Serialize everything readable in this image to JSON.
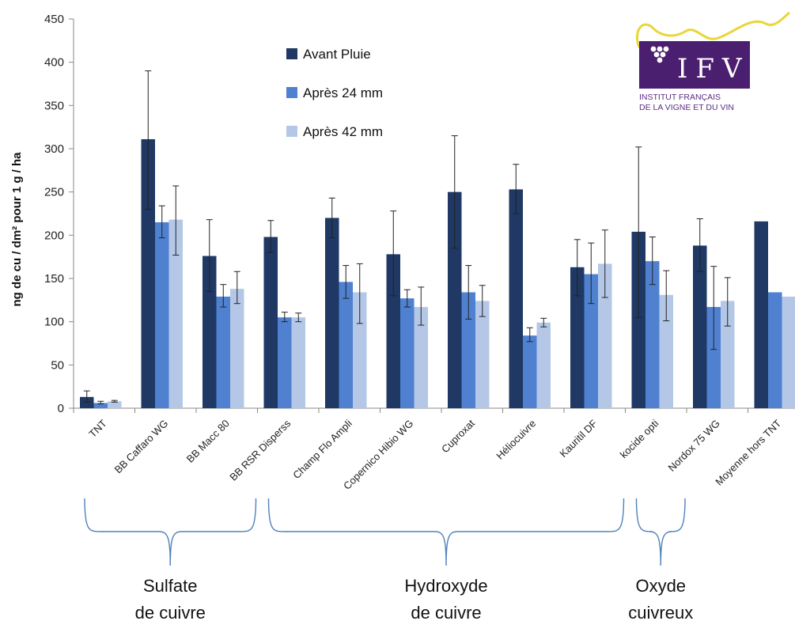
{
  "colors": {
    "avant": "#1f3864",
    "apres24": "#4f81d0",
    "apres42": "#b4c7e7",
    "brace": "#4f81bd",
    "logo_purple": "#4b1f6f",
    "logo_vine": "#e8d63a"
  },
  "logo": {
    "main": "IFV",
    "line1": "INSTITUT FRANÇAIS",
    "line2": "DE LA VIGNE ET DU VIN"
  },
  "groups": [
    {
      "lines": [
        "Sulfate",
        "de cuivre"
      ],
      "from": 0,
      "to": 2
    },
    {
      "lines": [
        "Hydroxyde",
        "de cuivre"
      ],
      "from": 3,
      "to": 8
    },
    {
      "lines": [
        "Oxyde",
        "cuivreux"
      ],
      "from": 9,
      "to": 9
    }
  ],
  "chart_data": {
    "type": "bar",
    "ylabel": "ng de cu / dm² pour 1 g / ha",
    "ylim": [
      0,
      450
    ],
    "yticks": [
      0,
      50,
      100,
      150,
      200,
      250,
      300,
      350,
      400,
      450
    ],
    "grid": false,
    "legend_position": "top-center",
    "categories": [
      "TNT",
      "BB Caffaro WG",
      "BB Macc 80",
      "BB RSR Disperss",
      "Champ Flo Ampli",
      "Copernico Hibio WG",
      "Cuproxat",
      "Héliocuivre",
      "Kauritil DF",
      "kocide opti",
      "Nordox 75 WG",
      "Moyenne hors TNT"
    ],
    "series": [
      {
        "name": "Avant Pluie",
        "values": [
          13,
          311,
          176,
          198,
          220,
          178,
          250,
          253,
          163,
          204,
          188,
          216
        ],
        "err_low": [
          7,
          230,
          135,
          180,
          197,
          130,
          185,
          225,
          130,
          105,
          158,
          null
        ],
        "err_high": [
          20,
          390,
          218,
          217,
          243,
          228,
          315,
          282,
          195,
          302,
          219,
          null
        ]
      },
      {
        "name": "Après 24 mm",
        "values": [
          6,
          215,
          129,
          105,
          146,
          127,
          134,
          84,
          155,
          170,
          117,
          134
        ],
        "err_low": [
          5,
          197,
          117,
          100,
          127,
          117,
          103,
          77,
          121,
          143,
          68,
          null
        ],
        "err_high": [
          8,
          234,
          143,
          111,
          165,
          137,
          165,
          93,
          191,
          198,
          164,
          null
        ]
      },
      {
        "name": "Après 42 mm",
        "values": [
          8,
          218,
          138,
          105,
          134,
          117,
          124,
          99,
          167,
          131,
          124,
          129
        ],
        "err_low": [
          7,
          177,
          121,
          100,
          98,
          96,
          106,
          94,
          128,
          101,
          95,
          null
        ],
        "err_high": [
          9,
          257,
          158,
          110,
          167,
          140,
          142,
          104,
          206,
          159,
          151,
          null
        ]
      }
    ]
  }
}
